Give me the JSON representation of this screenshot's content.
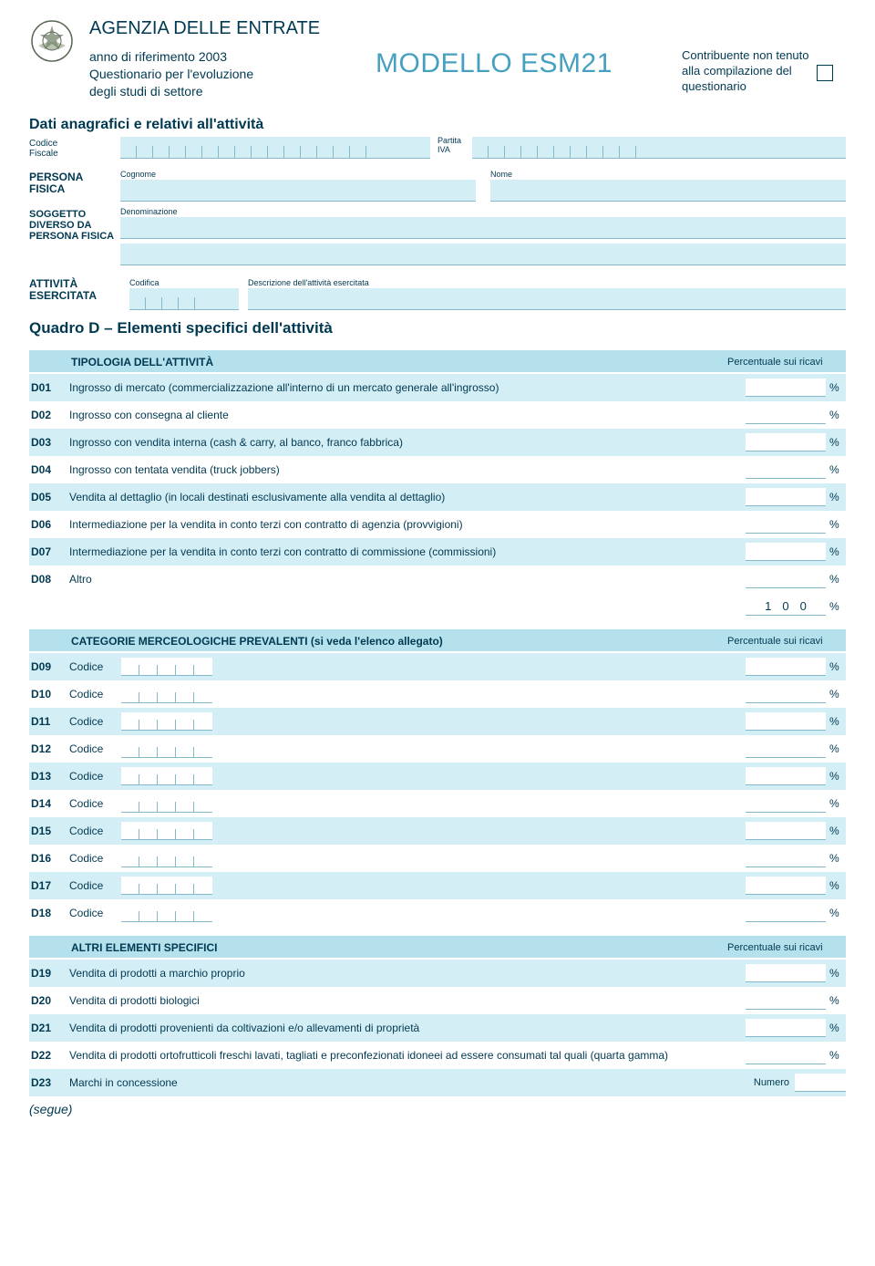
{
  "colors": {
    "text": "#003952",
    "accent": "#46a0c0",
    "band_dark": "#b5e1ed",
    "band_light": "#d4eef5",
    "border": "#83b9c9",
    "white": "#ffffff"
  },
  "header": {
    "agency": "AGENZIA DELLE ENTRATE",
    "ref_line1": "anno di riferimento 2003",
    "ref_line2": "Questionario per l'evoluzione",
    "ref_line3": "degli studi di settore",
    "modello": "MODELLO ESM21",
    "contrib_line1": "Contribuente non tenuto",
    "contrib_line2": "alla compilazione del",
    "contrib_line3": "questionario"
  },
  "anagraf": {
    "section_title": "Dati anagrafici e relativi all'attività",
    "codice_fiscale_label": "Codice\nFiscale",
    "partita_iva_label": "Partita\nIVA",
    "persona_fisica_label": "PERSONA FISICA",
    "cognome_label": "Cognome",
    "nome_label": "Nome",
    "soggetto_label": "SOGGETTO DIVERSO DA PERSONA FISICA",
    "denominazione_label": "Denominazione",
    "attivita_label": "ATTIVITÀ ESERCITATA",
    "codifica_label": "Codifica",
    "descrizione_label": "Descrizione dell'attività esercitata"
  },
  "quadroD": {
    "title": "Quadro D – Elementi specifici dell'attività",
    "header1_title": "TIPOLOGIA DELL'ATTIVITÀ",
    "header1_right": "Percentuale sui ricavi",
    "rows1": [
      {
        "code": "D01",
        "desc": "Ingrosso di mercato (commercializzazione all'interno di un mercato generale all'ingrosso)",
        "unit": "%"
      },
      {
        "code": "D02",
        "desc": "Ingrosso con consegna al cliente",
        "unit": "%"
      },
      {
        "code": "D03",
        "desc": "Ingrosso con vendita interna (cash & carry, al banco, franco fabbrica)",
        "unit": "%"
      },
      {
        "code": "D04",
        "desc": "Ingrosso con tentata vendita (truck jobbers)",
        "unit": "%"
      },
      {
        "code": "D05",
        "desc": "Vendita al dettaglio (in locali destinati esclusivamente alla vendita al dettaglio)",
        "unit": "%"
      },
      {
        "code": "D06",
        "desc": "Intermediazione per la vendita in conto terzi con contratto di agenzia (provvigioni)",
        "unit": "%"
      },
      {
        "code": "D07",
        "desc": "Intermediazione per la vendita in conto terzi con contratto di commissione (commissioni)",
        "unit": "%"
      },
      {
        "code": "D08",
        "desc": "Altro",
        "unit": "%"
      }
    ],
    "total_value": "100",
    "total_unit": "%",
    "header2_title": "CATEGORIE MERCEOLOGICHE PREVALENTI (si veda l'elenco allegato)",
    "header2_right": "Percentuale sui ricavi",
    "codice_label": "Codice",
    "rows2": [
      {
        "code": "D09",
        "unit": "%"
      },
      {
        "code": "D10",
        "unit": "%"
      },
      {
        "code": "D11",
        "unit": "%"
      },
      {
        "code": "D12",
        "unit": "%"
      },
      {
        "code": "D13",
        "unit": "%"
      },
      {
        "code": "D14",
        "unit": "%"
      },
      {
        "code": "D15",
        "unit": "%"
      },
      {
        "code": "D16",
        "unit": "%"
      },
      {
        "code": "D17",
        "unit": "%"
      },
      {
        "code": "D18",
        "unit": "%"
      }
    ],
    "header3_title": "ALTRI ELEMENTI SPECIFICI",
    "header3_right": "Percentuale sui ricavi",
    "rows3": [
      {
        "code": "D19",
        "desc": "Vendita di prodotti a marchio proprio",
        "unit": "%"
      },
      {
        "code": "D20",
        "desc": "Vendita di prodotti biologici",
        "unit": "%"
      },
      {
        "code": "D21",
        "desc": "Vendita di prodotti provenienti da coltivazioni e/o allevamenti di proprietà",
        "unit": "%"
      },
      {
        "code": "D22",
        "desc": "Vendita di prodotti ortofrutticoli freschi lavati, tagliati e preconfezionati idoneei ad essere consumati tal quali (quarta gamma)",
        "unit": "%"
      }
    ],
    "row_d23": {
      "code": "D23",
      "desc": "Marchi in concessione",
      "unit_label": "Numero"
    }
  },
  "segue": "(segue)"
}
